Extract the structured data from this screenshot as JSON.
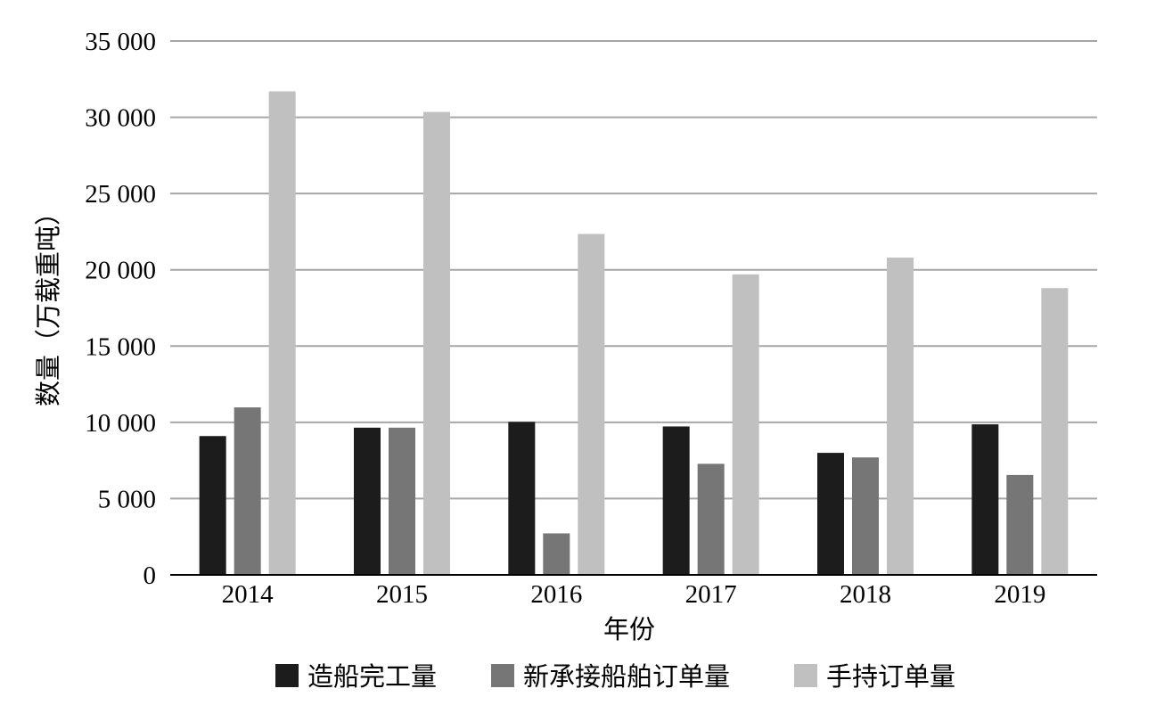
{
  "chart_data": {
    "type": "bar",
    "categories": [
      "2014",
      "2015",
      "2016",
      "2017",
      "2018",
      "2019"
    ],
    "series": [
      {
        "name": "造船完工量",
        "color": "#1c1c1c",
        "values": [
          9100,
          9650,
          10030,
          9730,
          8000,
          9870
        ]
      },
      {
        "name": "新承接船舶订单量",
        "color": "#767676",
        "values": [
          10980,
          9650,
          2720,
          7280,
          7700,
          6550
        ]
      },
      {
        "name": "手持订单量",
        "color": "#c0c0c0",
        "values": [
          31700,
          30350,
          22350,
          19700,
          20800,
          18800
        ]
      }
    ],
    "xlabel": "年份",
    "ylabel": "数量（万载重吨）",
    "ylim": [
      0,
      35000
    ],
    "yticks": [
      0,
      5000,
      10000,
      15000,
      20000,
      25000,
      30000,
      35000
    ],
    "ytick_labels": [
      "0",
      "5 000",
      "10 000",
      "15 000",
      "20 000",
      "25 000",
      "30 000",
      "35 000"
    ],
    "grid": true,
    "legend_position": "bottom",
    "gridline_color": "#a6a6a6",
    "axis_color": "#000000"
  }
}
